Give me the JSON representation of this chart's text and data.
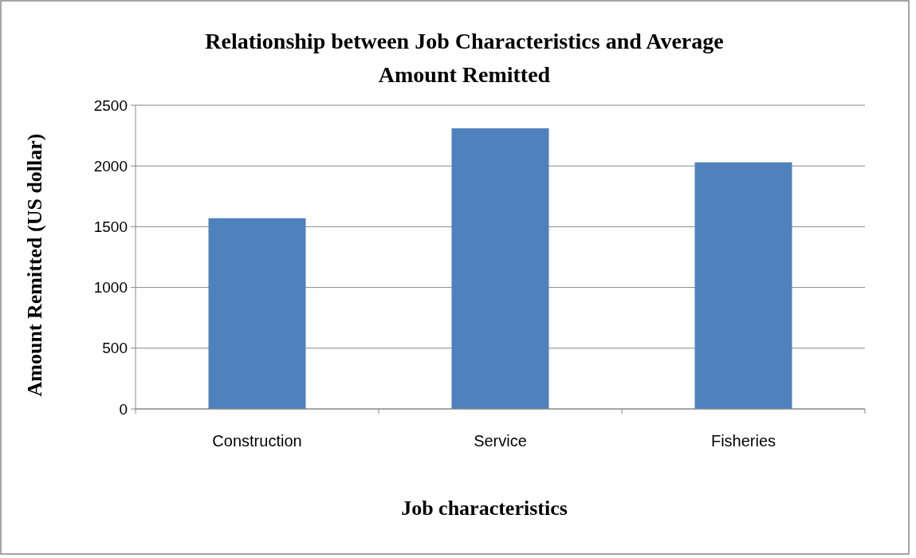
{
  "chart_data": {
    "type": "bar",
    "title": "Relationship between Job Characteristics and Average Amount Remitted",
    "xlabel": "Job characteristics",
    "ylabel": "Amount Remitted (US dollar)",
    "categories": [
      "Construction",
      "Service",
      "Fisheries"
    ],
    "values": [
      1570,
      2310,
      2030
    ],
    "color": "#4f81bd",
    "ylim": [
      0,
      2500
    ],
    "yticks": [
      0,
      500,
      1000,
      1500,
      2000,
      2500
    ],
    "grid": "y"
  }
}
